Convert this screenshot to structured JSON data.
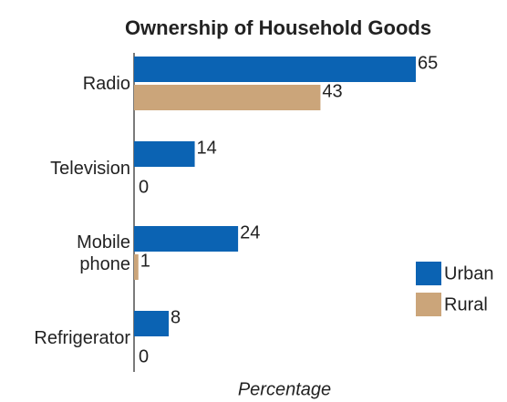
{
  "chart_data": {
    "type": "bar",
    "orientation": "horizontal",
    "title": "Ownership of Household Goods",
    "x_label": "Percentage",
    "categories": [
      "Radio",
      "Television",
      "Mobile phone",
      "Refrigerator"
    ],
    "series": [
      {
        "name": "Urban",
        "color": "#0b63b3",
        "values": [
          65,
          14,
          24,
          8
        ]
      },
      {
        "name": "Rural",
        "color": "#cba57a",
        "values": [
          43,
          0,
          1,
          0
        ]
      }
    ]
  }
}
